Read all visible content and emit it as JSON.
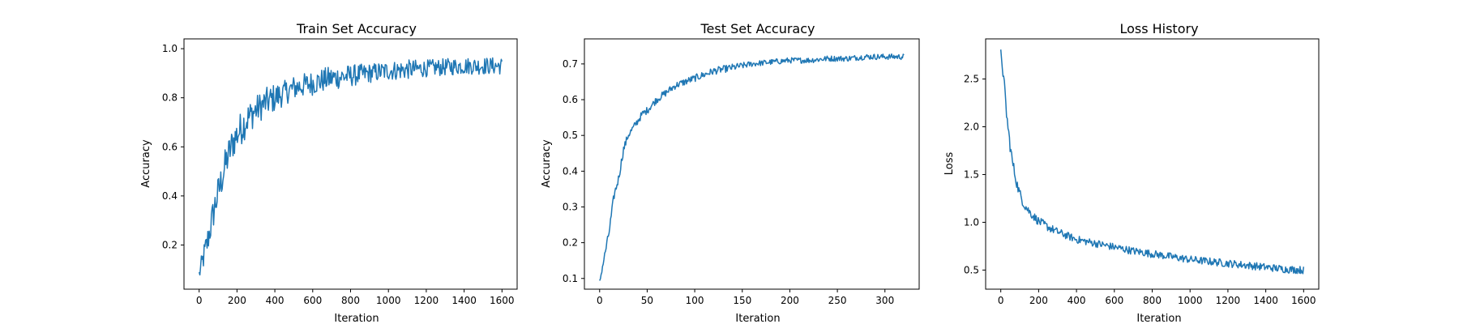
{
  "figure": {
    "background": "#ffffff",
    "line_color": "#1f77b4"
  },
  "chart_data": [
    {
      "type": "line",
      "title": "Train Set Accuracy",
      "xlabel": "Iteration",
      "ylabel": "Accuracy",
      "xlim": [
        -80,
        1680
      ],
      "ylim": [
        0.02,
        1.04
      ],
      "xticks": [
        0,
        200,
        400,
        600,
        800,
        1000,
        1200,
        1400,
        1600
      ],
      "yticks": [
        0.2,
        0.4,
        0.6,
        0.8,
        1.0
      ],
      "ytick_format": 1,
      "series": [
        {
          "x": [
            0,
            20,
            40,
            60,
            80,
            100,
            120,
            140,
            160,
            180,
            200,
            250,
            300,
            350,
            400,
            450,
            500,
            600,
            700,
            800,
            900,
            1000,
            1100,
            1200,
            1300,
            1400,
            1500,
            1600
          ],
          "y": [
            0.08,
            0.14,
            0.2,
            0.27,
            0.35,
            0.41,
            0.47,
            0.53,
            0.58,
            0.62,
            0.65,
            0.71,
            0.75,
            0.78,
            0.8,
            0.82,
            0.84,
            0.86,
            0.88,
            0.89,
            0.9,
            0.91,
            0.915,
            0.92,
            0.925,
            0.93,
            0.93,
            0.93
          ],
          "noise": [
            0.03,
            0.05,
            0.06,
            0.06,
            0.07,
            0.07,
            0.07,
            0.07,
            0.07,
            0.07,
            0.07,
            0.07,
            0.06,
            0.06,
            0.06,
            0.05,
            0.05,
            0.05,
            0.05,
            0.045,
            0.04,
            0.04,
            0.04,
            0.035,
            0.035,
            0.035,
            0.035,
            0.035
          ]
        }
      ]
    },
    {
      "type": "line",
      "title": "Test Set Accuracy",
      "xlabel": "Iteration",
      "ylabel": "Accuracy",
      "xlim": [
        -16,
        336
      ],
      "ylim": [
        0.07,
        0.77
      ],
      "xticks": [
        0,
        50,
        100,
        150,
        200,
        250,
        300
      ],
      "yticks": [
        0.1,
        0.2,
        0.3,
        0.4,
        0.5,
        0.6,
        0.7
      ],
      "ytick_format": 1,
      "series": [
        {
          "x": [
            0,
            5,
            10,
            15,
            20,
            25,
            30,
            35,
            40,
            45,
            50,
            60,
            70,
            80,
            90,
            100,
            120,
            140,
            160,
            180,
            200,
            220,
            240,
            260,
            280,
            300,
            320
          ],
          "y": [
            0.09,
            0.16,
            0.23,
            0.33,
            0.38,
            0.46,
            0.5,
            0.52,
            0.54,
            0.56,
            0.57,
            0.6,
            0.62,
            0.64,
            0.65,
            0.66,
            0.68,
            0.69,
            0.7,
            0.705,
            0.71,
            0.71,
            0.715,
            0.715,
            0.72,
            0.72,
            0.72
          ],
          "noise": [
            0.005,
            0.01,
            0.012,
            0.012,
            0.012,
            0.012,
            0.01,
            0.01,
            0.01,
            0.01,
            0.01,
            0.01,
            0.01,
            0.01,
            0.01,
            0.01,
            0.01,
            0.01,
            0.008,
            0.008,
            0.008,
            0.008,
            0.008,
            0.008,
            0.008,
            0.008,
            0.008
          ]
        }
      ]
    },
    {
      "type": "line",
      "title": "Loss History",
      "xlabel": "Iteration",
      "ylabel": "Loss",
      "xlim": [
        -80,
        1680
      ],
      "ylim": [
        0.3,
        2.92
      ],
      "xticks": [
        0,
        200,
        400,
        600,
        800,
        1000,
        1200,
        1400,
        1600
      ],
      "yticks": [
        0.5,
        1.0,
        1.5,
        2.0,
        2.5
      ],
      "ytick_format": 1,
      "series": [
        {
          "x": [
            0,
            10,
            20,
            30,
            40,
            50,
            60,
            70,
            80,
            90,
            100,
            120,
            140,
            160,
            180,
            200,
            250,
            300,
            350,
            400,
            500,
            600,
            700,
            800,
            900,
            1000,
            1100,
            1200,
            1300,
            1400,
            1500,
            1600
          ],
          "y": [
            2.8,
            2.6,
            2.4,
            2.15,
            1.95,
            1.8,
            1.65,
            1.55,
            1.45,
            1.37,
            1.3,
            1.2,
            1.14,
            1.09,
            1.05,
            1.01,
            0.95,
            0.9,
            0.86,
            0.82,
            0.78,
            0.74,
            0.7,
            0.67,
            0.64,
            0.61,
            0.59,
            0.57,
            0.55,
            0.53,
            0.51,
            0.5
          ],
          "noise": [
            0.01,
            0.06,
            0.07,
            0.07,
            0.07,
            0.07,
            0.065,
            0.06,
            0.06,
            0.055,
            0.055,
            0.05,
            0.05,
            0.045,
            0.045,
            0.045,
            0.045,
            0.04,
            0.04,
            0.04,
            0.04,
            0.04,
            0.04,
            0.04,
            0.04,
            0.04,
            0.04,
            0.04,
            0.04,
            0.04,
            0.04,
            0.04
          ]
        }
      ]
    }
  ]
}
